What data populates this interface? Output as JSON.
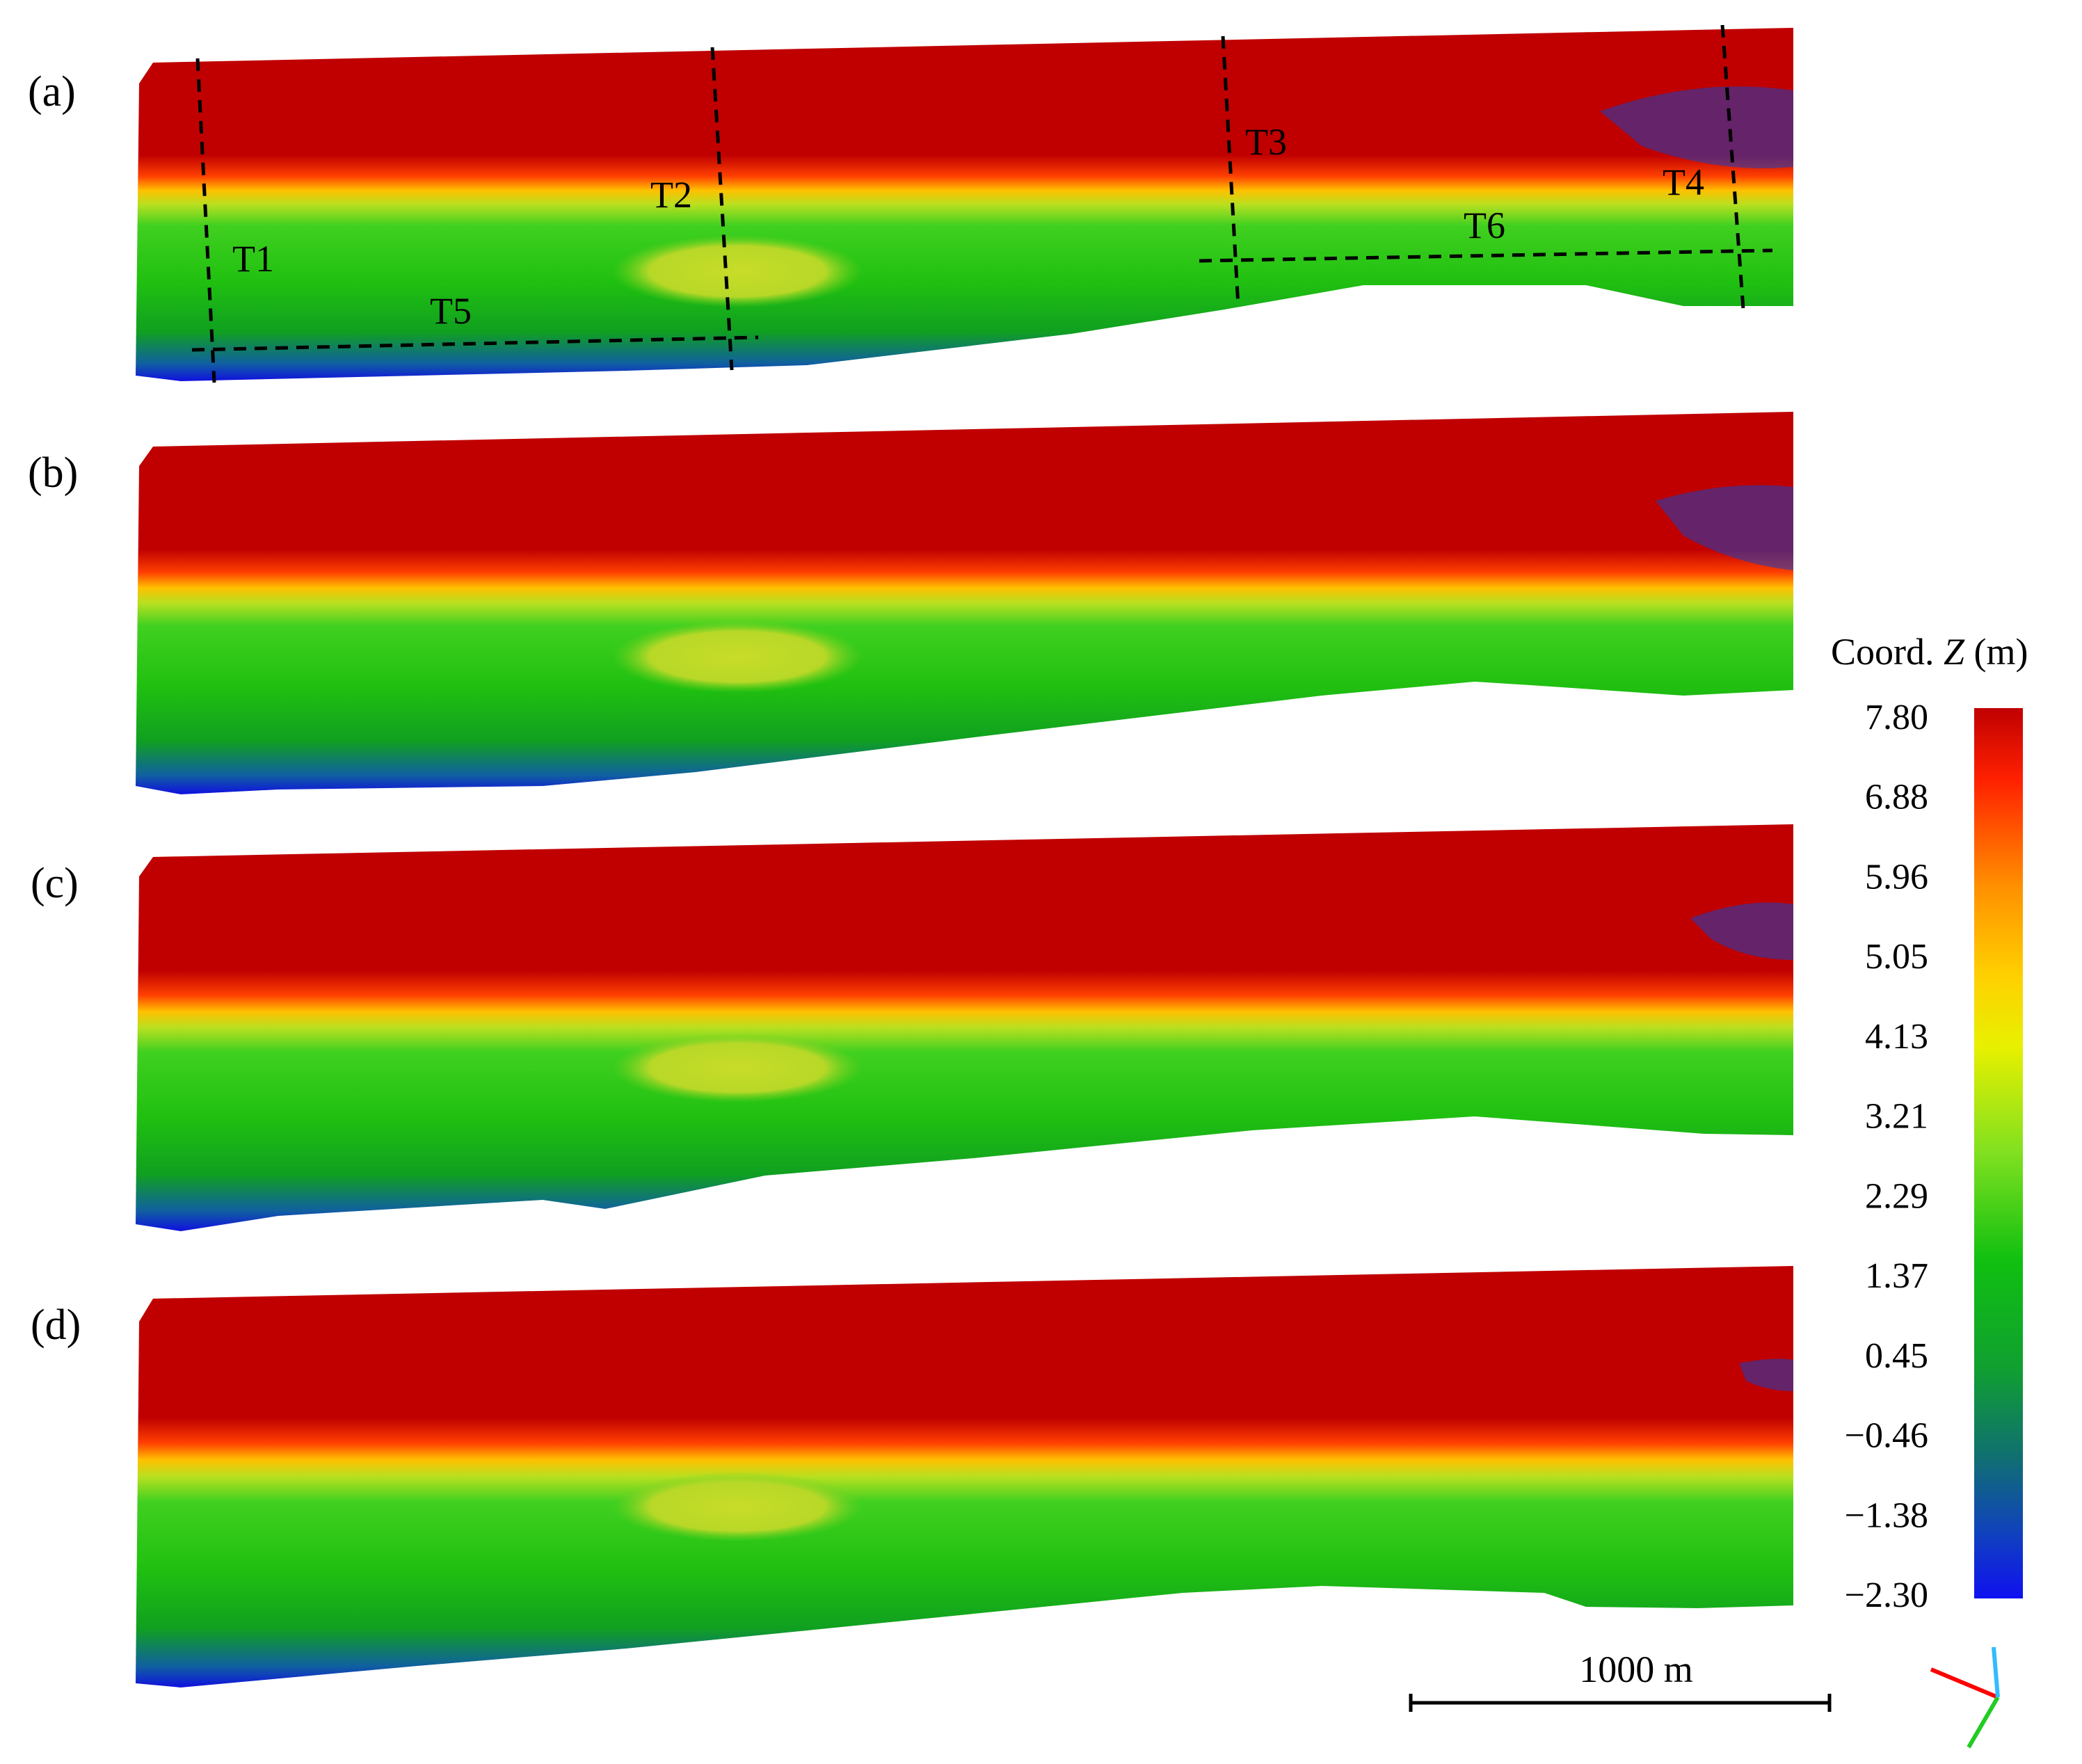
{
  "panels": [
    {
      "label": "(a)",
      "transects": [
        "T1",
        "T2",
        "T3",
        "T4",
        "T5",
        "T6"
      ]
    },
    {
      "label": "(b)"
    },
    {
      "label": "(c)"
    },
    {
      "label": "(d)"
    }
  ],
  "colorbar": {
    "title_prefix": "Coord. ",
    "title_var": "Z",
    "title_unit": " (m)",
    "ticks": [
      "7.80",
      "6.88",
      "5.96",
      "5.05",
      "4.13",
      "3.21",
      "2.29",
      "1.37",
      "0.45",
      "−0.46",
      "−1.38",
      "−2.30"
    ],
    "colors": [
      "#c00000",
      "#ff3000",
      "#ff9000",
      "#ffd000",
      "#f0f000",
      "#a0e020",
      "#30d020",
      "#10c010",
      "#10a030",
      "#107070",
      "#1040c0",
      "#1010f0"
    ]
  },
  "scale_bar": {
    "label": "1000 m"
  },
  "axes_triad": {
    "x_color": "#ff0000",
    "y_color": "#22cc22",
    "z_color": "#33bbff"
  }
}
